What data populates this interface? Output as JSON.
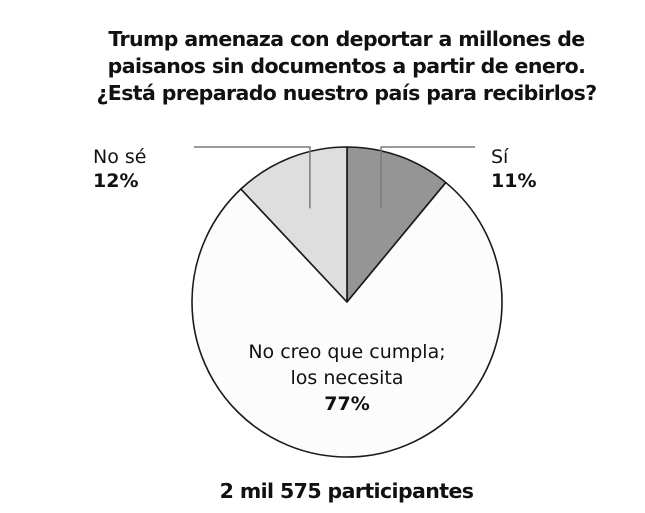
{
  "chart_data": {
    "type": "pie",
    "title": "Trump amenaza con deportar a millones de paisanos sin documentos a partir de enero. ¿Está preparado nuestro país para recibirlos?",
    "title_lines": [
      "Trump amenaza con deportar a millones de",
      "paisanos sin documentos a partir de enero.",
      "¿Está preparado nuestro país para recibirlos?"
    ],
    "slices": [
      {
        "label": "Sí",
        "label_lines": [
          "Sí"
        ],
        "value": 11,
        "value_label": "11%",
        "color": "#959595"
      },
      {
        "label": "No creo que cumpla; los necesita",
        "label_lines": [
          "No creo que cumpla;",
          "los necesita"
        ],
        "value": 77,
        "value_label": "77%",
        "color": "#fcfcfc"
      },
      {
        "label": "No sé",
        "label_lines": [
          "No sé"
        ],
        "value": 12,
        "value_label": "12%",
        "color": "#dedede"
      }
    ],
    "start_angle_deg": 0,
    "direction": "clockwise",
    "footer": "2 mil 575 participantes",
    "legend": "none"
  }
}
